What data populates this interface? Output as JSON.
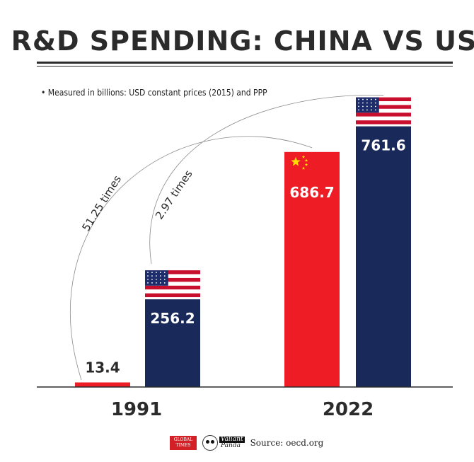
{
  "title": "R&D SPENDING: CHINA VS US",
  "note": "• Measured in billions: USD constant prices (2015) and PPP",
  "colors": {
    "china": "#ee1c25",
    "us": "#18295a",
    "text": "#2b2b2b"
  },
  "chart_data": {
    "type": "bar",
    "categories": [
      "1991",
      "2022"
    ],
    "series": [
      {
        "name": "China",
        "values": [
          13.4,
          686.7
        ],
        "color": "#ee1c25",
        "flag": "china-flag"
      },
      {
        "name": "US",
        "values": [
          256.2,
          761.6
        ],
        "color": "#18295a",
        "flag": "us-flag"
      }
    ],
    "value_labels": {
      "1991": [
        "13.4",
        "256.2"
      ],
      "2022": [
        "686.7",
        "761.6"
      ]
    },
    "ylim": [
      0,
      800
    ],
    "grid": false,
    "annotations": [
      {
        "text": "51.25 times",
        "from": "China 1991",
        "to": "China 2022"
      },
      {
        "text": "2.97 times",
        "from": "US 1991",
        "to": "US 2022"
      }
    ]
  },
  "footer": {
    "logo_global_times": [
      "GLOBAL",
      "TIMES"
    ],
    "logo_panda": [
      "Valiant",
      "Panda"
    ],
    "source": "Source: oecd.org"
  }
}
